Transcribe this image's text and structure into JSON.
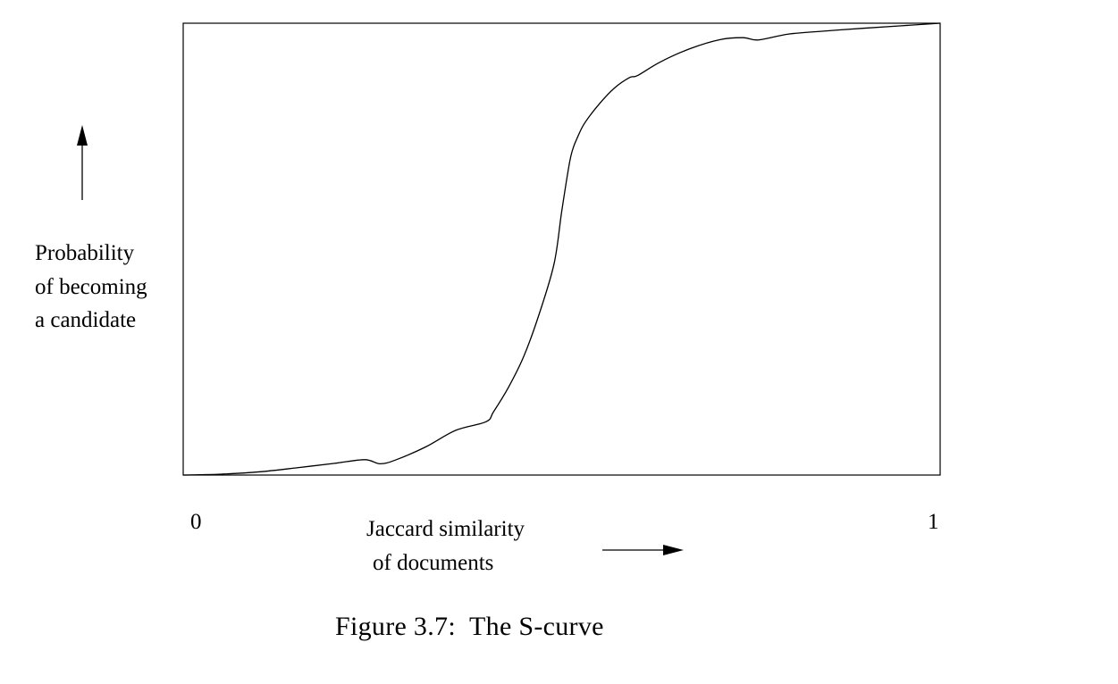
{
  "chart_data": {
    "type": "line",
    "title": "",
    "caption": "Figure 3.7:  The S-curve",
    "ylabel_lines": [
      "Probability",
      "of becoming",
      "a candidate"
    ],
    "xlabel_lines": [
      "Jaccard similarity",
      "of documents"
    ],
    "xlim": [
      0,
      1
    ],
    "ylim": [
      0,
      1
    ],
    "x_tick_labels": [
      "0",
      "1"
    ],
    "grid": false,
    "legend": "none",
    "series": [
      {
        "x": [
          0.0,
          0.05,
          0.1,
          0.15,
          0.2,
          0.24,
          0.26,
          0.28,
          0.32,
          0.36,
          0.4,
          0.41,
          0.43,
          0.45,
          0.47,
          0.49,
          0.5,
          0.51,
          0.515,
          0.52,
          0.53,
          0.55,
          0.57,
          0.59,
          0.6,
          0.63,
          0.67,
          0.71,
          0.74,
          0.76,
          0.8,
          0.85,
          0.9,
          1.0
        ],
        "y": [
          0.0,
          0.002,
          0.007,
          0.016,
          0.026,
          0.034,
          0.025,
          0.033,
          0.062,
          0.099,
          0.118,
          0.14,
          0.195,
          0.263,
          0.355,
          0.468,
          0.583,
          0.688,
          0.723,
          0.744,
          0.778,
          0.822,
          0.857,
          0.88,
          0.884,
          0.914,
          0.944,
          0.964,
          0.968,
          0.963,
          0.976,
          0.983,
          0.989,
          1.0
        ]
      }
    ]
  },
  "style": {
    "line_color": "#000000",
    "background": "#ffffff"
  }
}
